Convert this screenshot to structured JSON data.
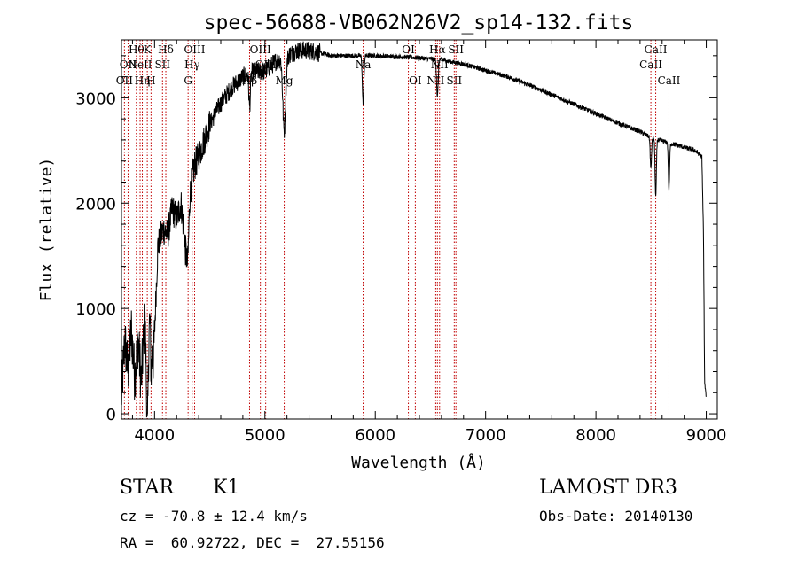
{
  "chart_data": {
    "type": "line",
    "title": "spec-56688-VB062N26V2_sp14-132.fits",
    "xlabel": "Wavelength (Å)",
    "ylabel": "Flux (relative)",
    "xlim": [
      3700,
      9100
    ],
    "ylim": [
      -50,
      3550
    ],
    "xticks": [
      4000,
      5000,
      6000,
      7000,
      8000,
      9000
    ],
    "yticks": [
      0,
      1000,
      2000,
      3000
    ],
    "line_color": "#000000",
    "marker_color": "#c00000",
    "spectrum_anchors": [
      [
        3700,
        150
      ],
      [
        3730,
        700
      ],
      [
        3760,
        400
      ],
      [
        3790,
        800
      ],
      [
        3820,
        350
      ],
      [
        3850,
        700
      ],
      [
        3880,
        300
      ],
      [
        3910,
        900
      ],
      [
        3935,
        400
      ],
      [
        3960,
        1100
      ],
      [
        3990,
        500
      ],
      [
        4030,
        1600
      ],
      [
        4080,
        1750
      ],
      [
        4120,
        1700
      ],
      [
        4160,
        1950
      ],
      [
        4200,
        1850
      ],
      [
        4240,
        2000
      ],
      [
        4280,
        1600
      ],
      [
        4320,
        2100
      ],
      [
        4360,
        2350
      ],
      [
        4400,
        2450
      ],
      [
        4450,
        2600
      ],
      [
        4500,
        2750
      ],
      [
        4600,
        2950
      ],
      [
        4700,
        3100
      ],
      [
        4800,
        3200
      ],
      [
        4900,
        3250
      ],
      [
        5000,
        3250
      ],
      [
        5100,
        3350
      ],
      [
        5200,
        3400
      ],
      [
        5300,
        3450
      ],
      [
        5400,
        3450
      ],
      [
        5600,
        3400
      ],
      [
        5800,
        3400
      ],
      [
        6000,
        3400
      ],
      [
        6200,
        3390
      ],
      [
        6400,
        3380
      ],
      [
        6600,
        3360
      ],
      [
        6800,
        3320
      ],
      [
        7000,
        3260
      ],
      [
        7200,
        3200
      ],
      [
        7400,
        3120
      ],
      [
        7600,
        3030
      ],
      [
        7800,
        2940
      ],
      [
        8000,
        2850
      ],
      [
        8200,
        2760
      ],
      [
        8400,
        2680
      ],
      [
        8500,
        2620
      ],
      [
        8700,
        2560
      ],
      [
        8900,
        2500
      ],
      [
        8960,
        2440
      ],
      [
        8975,
        1700
      ],
      [
        8985,
        300
      ],
      [
        9000,
        150
      ]
    ],
    "absorption_dips": [
      {
        "x": 3934,
        "depth": 600,
        "width": 10
      },
      {
        "x": 3968,
        "depth": 500,
        "width": 10
      },
      {
        "x": 4300,
        "depth": 400,
        "width": 14
      },
      {
        "x": 4861,
        "depth": 300,
        "width": 10
      },
      {
        "x": 5175,
        "depth": 700,
        "width": 18
      },
      {
        "x": 5890,
        "depth": 450,
        "width": 10
      },
      {
        "x": 6563,
        "depth": 350,
        "width": 10
      },
      {
        "x": 8498,
        "depth": 300,
        "width": 8
      },
      {
        "x": 8542,
        "depth": 550,
        "width": 8
      },
      {
        "x": 8662,
        "depth": 450,
        "width": 8
      }
    ],
    "line_markers": [
      {
        "x": 3727,
        "label": "OII",
        "row": 3
      },
      {
        "x": 3760,
        "label": "OII",
        "row": 2
      },
      {
        "x": 3835,
        "label": "Hθ",
        "row": 1
      },
      {
        "x": 3869,
        "label": "NeII",
        "row": 2
      },
      {
        "x": 3889,
        "label": "Hη",
        "row": 3
      },
      {
        "x": 3934,
        "label": "K",
        "row": 1
      },
      {
        "x": 3968,
        "label": "H",
        "row": 3
      },
      {
        "x": 4072,
        "label": "SII",
        "row": 2
      },
      {
        "x": 4102,
        "label": "Hδ",
        "row": 1
      },
      {
        "x": 4304,
        "label": "G",
        "row": 3
      },
      {
        "x": 4341,
        "label": "Hγ",
        "row": 2
      },
      {
        "x": 4363,
        "label": "OIII",
        "row": 1
      },
      {
        "x": 4861,
        "label": "Hβ",
        "row": 3
      },
      {
        "x": 4959,
        "label": "OIII",
        "row": 1
      },
      {
        "x": 5007,
        "label": "OIII",
        "row": 2
      },
      {
        "x": 5175,
        "label": "Mg",
        "row": 3
      },
      {
        "x": 5890,
        "label": "Na",
        "row": 2
      },
      {
        "x": 6300,
        "label": "OI",
        "row": 1
      },
      {
        "x": 6363,
        "label": "OI",
        "row": 3
      },
      {
        "x": 6548,
        "label": "NII",
        "row": 3
      },
      {
        "x": 6563,
        "label": "Hα",
        "row": 1
      },
      {
        "x": 6583,
        "label": "NII",
        "row": 2
      },
      {
        "x": 6716,
        "label": "SII",
        "row": 3
      },
      {
        "x": 6731,
        "label": "SII",
        "row": 1
      },
      {
        "x": 8498,
        "label": "CaII",
        "row": 2
      },
      {
        "x": 8542,
        "label": "CaII",
        "row": 1
      },
      {
        "x": 8662,
        "label": "CaII",
        "row": 3
      }
    ]
  },
  "info": {
    "object_class": "STAR",
    "subclass": "K1",
    "survey": "LAMOST DR3",
    "cz": "cz = -70.8 ± 12.4 km/s",
    "obs_date": "Obs-Date: 20140130",
    "coords": "RA =  60.92722, DEC =  27.55156"
  }
}
